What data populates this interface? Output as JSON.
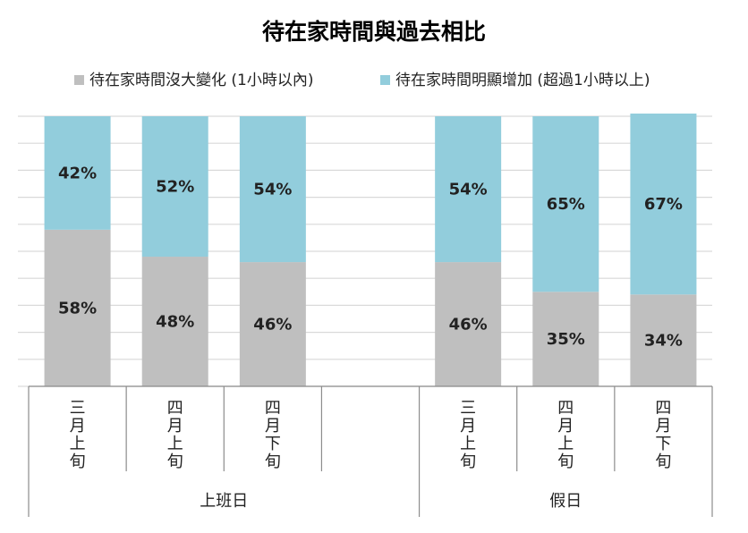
{
  "chart_data": {
    "type": "bar",
    "stacked": true,
    "percent": true,
    "title": "待在家時間與過去相比",
    "legend_position": "top",
    "ylim": [
      0,
      100
    ],
    "grid": true,
    "series": [
      {
        "name": "待在家時間沒大變化 (1小時以內)",
        "color": "#bfbfbf",
        "values": [
          58,
          48,
          46,
          null,
          46,
          35,
          34
        ],
        "labels": [
          "58%",
          "48%",
          "46%",
          "",
          "46%",
          "35%",
          "34%"
        ]
      },
      {
        "name": "待在家時間明顯增加 (超過1小時以上)",
        "color": "#92cddc",
        "values": [
          42,
          52,
          54,
          null,
          54,
          65,
          67
        ],
        "labels": [
          "42%",
          "52%",
          "54%",
          "",
          "54%",
          "65%",
          "67%"
        ]
      }
    ],
    "categories": [
      "三月上旬",
      "四月上旬",
      "四月下旬",
      "",
      "三月上旬",
      "四月上旬",
      "四月下旬"
    ],
    "groups": [
      {
        "label": "上班日",
        "span": 4
      },
      {
        "label": "假日",
        "span": 3
      }
    ]
  }
}
